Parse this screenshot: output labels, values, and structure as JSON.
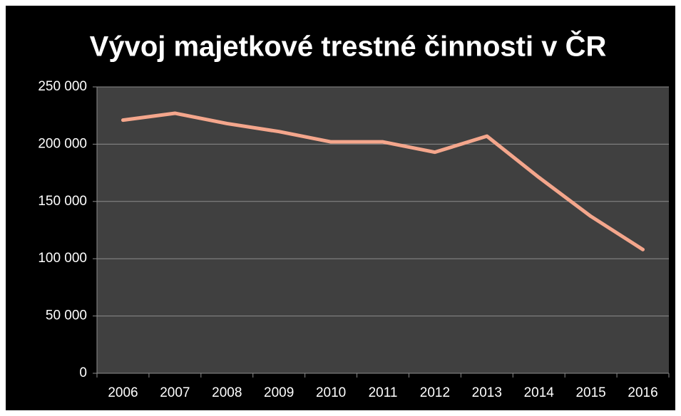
{
  "chart_data": {
    "type": "line",
    "title": "Vývoj majetkové trestné činnosti v ČR",
    "categories": [
      "2006",
      "2007",
      "2008",
      "2009",
      "2010",
      "2011",
      "2012",
      "2013",
      "2014",
      "2015",
      "2016"
    ],
    "series": [
      {
        "color": "#f4a68c",
        "values": [
          221000,
          227000,
          218000,
          211000,
          202000,
          202000,
          193000,
          207000,
          171000,
          137000,
          108000
        ]
      }
    ],
    "ylim": [
      0,
      250000
    ],
    "yticks": [
      {
        "value": 0,
        "label": "0"
      },
      {
        "value": 50000,
        "label": "50 000"
      },
      {
        "value": 100000,
        "label": "100 000"
      },
      {
        "value": 150000,
        "label": "150 000"
      },
      {
        "value": 200000,
        "label": "200 000"
      },
      {
        "value": 250000,
        "label": "250 000"
      }
    ],
    "grid": true
  }
}
